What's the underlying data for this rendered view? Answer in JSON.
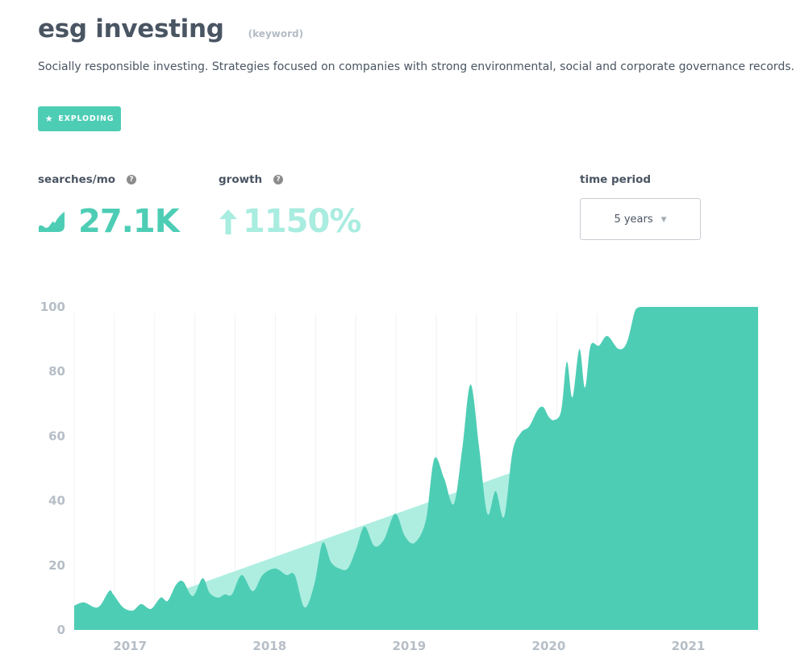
{
  "header": {
    "title": "esg investing",
    "kind": "(keyword)",
    "description": "Socially responsible investing. Strategies focused on companies with strong environmental, social and corporate governance records."
  },
  "badge": {
    "icon": "star-icon",
    "label": "EXPLODING"
  },
  "metrics": {
    "searches_label": "searches/mo",
    "searches_value": "27.1K",
    "growth_label": "growth",
    "growth_value": "1150%",
    "help_glyph": "?"
  },
  "time_period": {
    "label": "time period",
    "selected": "5 years"
  },
  "colors": {
    "accent": "#4ecdb5",
    "trend": "#aeeee1",
    "muted": "#b6bec7"
  },
  "chart_data": {
    "type": "area",
    "title": "",
    "xlabel": "",
    "ylabel": "",
    "ylim": [
      0,
      100
    ],
    "yticks": [
      0,
      20,
      40,
      60,
      80,
      100
    ],
    "xlim": [
      2016.6,
      2021.5
    ],
    "xticks": [
      {
        "label": "2017",
        "x": 2017.0
      },
      {
        "label": "2018",
        "x": 2018.0
      },
      {
        "label": "2019",
        "x": 2019.0
      },
      {
        "label": "2020",
        "x": 2020.0
      },
      {
        "label": "2021",
        "x": 2021.0
      }
    ],
    "grid": "vertical",
    "trend": {
      "x": [
        2017.35,
        2020.4
      ],
      "y": [
        12,
        59
      ]
    },
    "series": [
      {
        "x": [
          2016.6,
          2016.67,
          2016.77,
          2016.85,
          2016.88,
          2016.95,
          2017.02,
          2017.08,
          2017.15,
          2017.22,
          2017.27,
          2017.33,
          2017.38,
          2017.45,
          2017.52,
          2017.57,
          2017.63,
          2017.68,
          2017.73,
          2017.8,
          2017.88,
          2017.95,
          2018.04,
          2018.12,
          2018.18,
          2018.25,
          2018.32,
          2018.38,
          2018.44,
          2018.5,
          2018.56,
          2018.62,
          2018.68,
          2018.75,
          2018.82,
          2018.9,
          2018.97,
          2019.04,
          2019.12,
          2019.18,
          2019.25,
          2019.32,
          2019.38,
          2019.44,
          2019.5,
          2019.56,
          2019.62,
          2019.68,
          2019.74,
          2019.8,
          2019.86,
          2019.92,
          2019.96,
          2020.0,
          2020.04,
          2020.09,
          2020.13,
          2020.17,
          2020.22,
          2020.26,
          2020.3,
          2020.36,
          2020.42,
          2020.5,
          2020.56,
          2020.62,
          2020.66,
          2020.72,
          2020.78,
          2020.84,
          2020.9,
          2020.94,
          2020.98,
          2021.03,
          2021.08,
          2021.12,
          2021.17,
          2021.22,
          2021.26,
          2021.3,
          2021.35,
          2021.42,
          2021.46,
          2021.5
        ],
        "y": [
          7.5,
          8.5,
          7,
          12,
          11,
          7,
          6,
          8,
          6.5,
          10,
          9,
          14,
          15,
          10.5,
          16,
          11.5,
          10,
          11,
          11,
          17,
          12,
          17,
          19,
          17,
          17,
          7,
          14,
          27,
          21,
          19,
          19,
          25,
          32,
          26,
          28,
          36,
          29,
          27,
          34,
          53,
          47,
          39,
          56,
          76,
          57,
          36,
          43,
          35,
          55,
          61,
          63,
          68,
          69,
          66,
          65,
          68,
          83,
          72,
          87,
          75,
          88,
          88,
          91,
          87,
          89,
          99,
          100,
          100,
          100,
          100,
          100,
          100,
          100,
          100,
          100,
          100,
          100,
          100,
          100,
          100,
          100,
          100,
          100,
          100
        ]
      }
    ]
  }
}
